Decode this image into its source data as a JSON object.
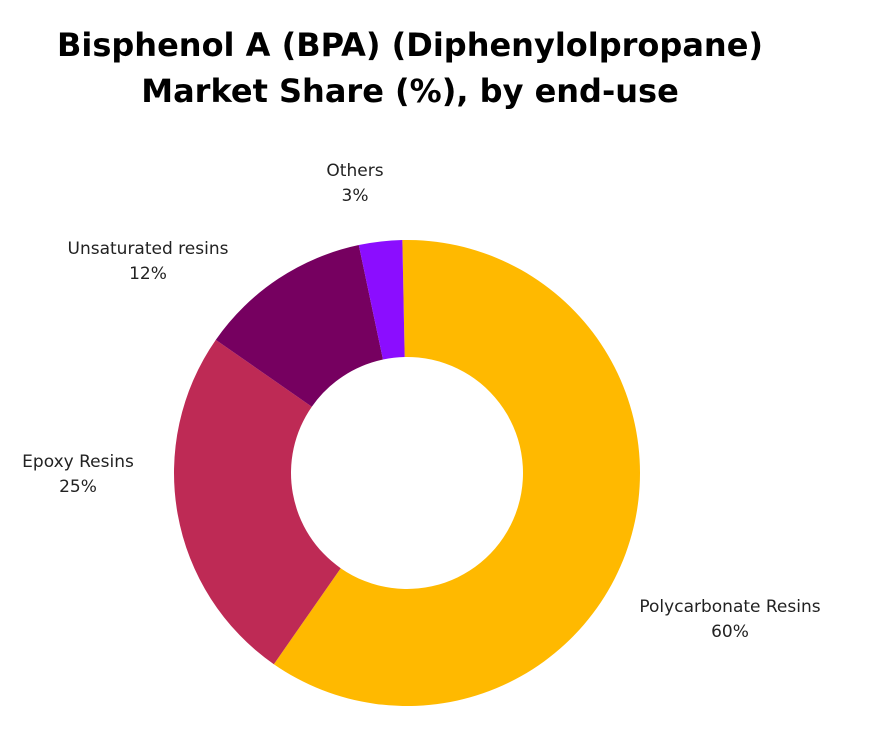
{
  "chart_data": {
    "type": "pie",
    "donut": true,
    "title": [
      "Bisphenol A (BPA) (Diphenylolpropane)",
      "Market Share (%), by end-use"
    ],
    "slices": [
      {
        "label": "Polycarbonate Resins",
        "value": 60,
        "value_label": "60%",
        "color": "#FFB900"
      },
      {
        "label": "Epoxy Resins",
        "value": 25,
        "value_label": "25%",
        "color": "#BE2A55"
      },
      {
        "label": "Unsaturated resins",
        "value": 12,
        "value_label": "12%",
        "color": "#760060"
      },
      {
        "label": "Others",
        "value": 3,
        "value_label": "3%",
        "color": "#8B0DFF"
      }
    ]
  }
}
